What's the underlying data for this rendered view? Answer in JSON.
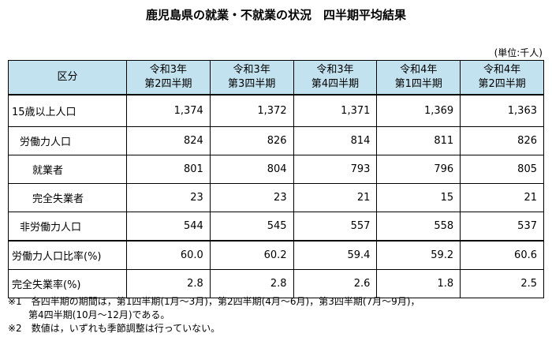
{
  "title": "鹿児島県の就業・不就業の状況　四半期平均結果",
  "unit": "(単位:千人)",
  "table": {
    "header": [
      "区分",
      "令和3年\n第2四半期",
      "令和3年\n第3四半期",
      "令和3年\n第4四半期",
      "令和4年\n第1四半期",
      "令和4年\n第2四半期"
    ],
    "rows": [
      [
        "15歳以上人口",
        "1,374",
        "1,372",
        "1,371",
        "1,369",
        "1,363"
      ],
      [
        "労働力人口",
        "824",
        "826",
        "814",
        "811",
        "826"
      ],
      [
        "就業者",
        "801",
        "804",
        "793",
        "796",
        "805"
      ],
      [
        "完全失業者",
        "23",
        "23",
        "21",
        "15",
        "21"
      ],
      [
        "非労働力人口",
        "544",
        "545",
        "557",
        "558",
        "537"
      ],
      [
        "労働力人口比率(%)",
        "60.0",
        "60.2",
        "59.4",
        "59.2",
        "60.6"
      ],
      [
        "完全失業率(%)",
        "2.8",
        "2.8",
        "2.6",
        "1.8",
        "2.5"
      ]
    ]
  },
  "notes": [
    "※1　各四半期の期間は，第1四半期(1月～3月)，第2四半期(4月～6月)，第3四半期(7月～9月)，",
    "第4四半期(10月～12月)である。",
    "※2　数値は，いずれも季節調整は行っていない。"
  ]
}
